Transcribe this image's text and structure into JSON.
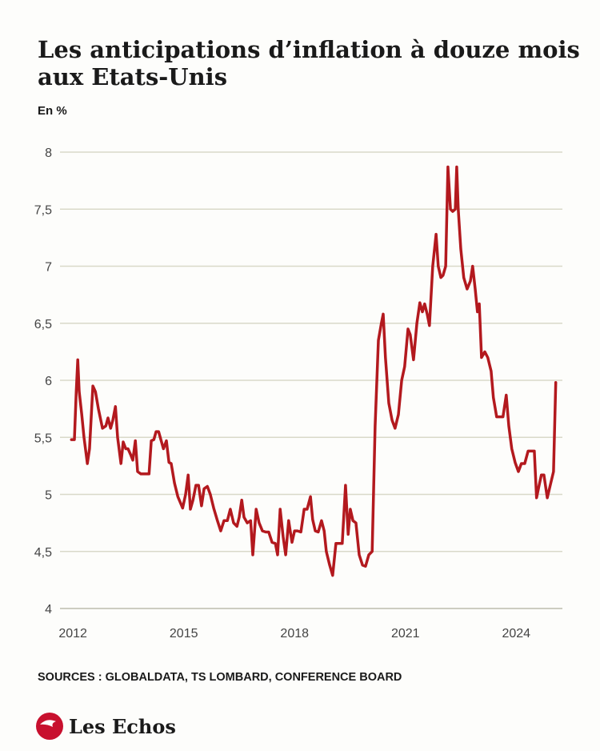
{
  "chart_data": {
    "type": "line",
    "title": "Les anticipations d’inflation à douze mois aux Etats-Unis",
    "title_lines": [
      "Les anticipations d’inflation à douze mois",
      "aux Etats-Unis"
    ],
    "subtitle": "En %",
    "source": "SOURCES : GLOBALDATA, TS LOMBARD, CONFERENCE BOARD",
    "brand": "Les Echos",
    "x": [
      2011.96,
      2012.04,
      2012.09,
      2012.13,
      2012.17,
      2012.24,
      2012.3,
      2012.39,
      2012.45,
      2012.54,
      2012.61,
      2012.69,
      2012.8,
      2012.89,
      2012.95,
      2013.02,
      2013.08,
      2013.15,
      2013.21,
      2013.3,
      2013.36,
      2013.43,
      2013.49,
      2013.56,
      2013.62,
      2013.69,
      2013.75,
      2013.84,
      2013.93,
      2014.06,
      2014.12,
      2014.19,
      2014.25,
      2014.32,
      2014.38,
      2014.45,
      2014.53,
      2014.6,
      2014.66,
      2014.75,
      2014.84,
      2014.97,
      2015.05,
      2015.12,
      2015.18,
      2015.25,
      2015.33,
      2015.4,
      2015.48,
      2015.55,
      2015.64,
      2015.72,
      2015.81,
      2015.9,
      2016.0,
      2016.09,
      2016.18,
      2016.26,
      2016.35,
      2016.44,
      2016.5,
      2016.57,
      2016.63,
      2016.72,
      2016.81,
      2016.87,
      2016.96,
      2017.04,
      2017.13,
      2017.22,
      2017.3,
      2017.39,
      2017.48,
      2017.54,
      2017.61,
      2017.69,
      2017.76,
      2017.84,
      2017.93,
      2018.0,
      2018.08,
      2018.17,
      2018.26,
      2018.34,
      2018.43,
      2018.49,
      2018.56,
      2018.64,
      2018.73,
      2018.8,
      2018.86,
      2018.95,
      2019.03,
      2019.12,
      2019.21,
      2019.29,
      2019.38,
      2019.45,
      2019.51,
      2019.58,
      2019.66,
      2019.75,
      2019.84,
      2019.92,
      2020.01,
      2020.1,
      2020.18,
      2020.27,
      2020.35,
      2020.4,
      2020.46,
      2020.55,
      2020.64,
      2020.72,
      2020.81,
      2020.9,
      2020.98,
      2021.07,
      2021.13,
      2021.22,
      2021.31,
      2021.39,
      2021.46,
      2021.52,
      2021.59,
      2021.65,
      2021.74,
      2021.83,
      2021.89,
      2021.96,
      2022.02,
      2022.09,
      2022.15,
      2022.22,
      2022.28,
      2022.35,
      2022.39,
      2022.43,
      2022.5,
      2022.58,
      2022.67,
      2022.76,
      2022.82,
      2022.89,
      2022.95,
      2023.0,
      2023.06,
      2023.15,
      2023.23,
      2023.32,
      2023.38,
      2023.47,
      2023.56,
      2023.64,
      2023.73,
      2023.8,
      2023.88,
      2023.97,
      2024.06,
      2024.14,
      2024.23,
      2024.32,
      2024.4,
      2024.49,
      2024.55,
      2024.62,
      2024.68,
      2024.75,
      2024.84,
      2024.92,
      2025.01,
      2025.07
    ],
    "series": [
      {
        "name": "Anticipations d’inflation à douze mois",
        "color": "#b3191e",
        "values": [
          5.48,
          5.48,
          5.9,
          6.18,
          5.9,
          5.7,
          5.5,
          5.27,
          5.4,
          5.95,
          5.9,
          5.75,
          5.58,
          5.6,
          5.67,
          5.58,
          5.65,
          5.77,
          5.5,
          5.27,
          5.46,
          5.4,
          5.4,
          5.35,
          5.3,
          5.47,
          5.2,
          5.18,
          5.18,
          5.18,
          5.47,
          5.48,
          5.55,
          5.55,
          5.48,
          5.4,
          5.47,
          5.28,
          5.27,
          5.1,
          4.98,
          4.88,
          5.0,
          5.17,
          4.87,
          4.95,
          5.08,
          5.08,
          4.9,
          5.05,
          5.07,
          5.0,
          4.88,
          4.78,
          4.68,
          4.77,
          4.77,
          4.87,
          4.75,
          4.72,
          4.8,
          4.95,
          4.8,
          4.75,
          4.77,
          4.47,
          4.87,
          4.75,
          4.68,
          4.67,
          4.67,
          4.58,
          4.57,
          4.47,
          4.87,
          4.63,
          4.47,
          4.77,
          4.58,
          4.68,
          4.68,
          4.67,
          4.87,
          4.87,
          4.98,
          4.78,
          4.68,
          4.67,
          4.77,
          4.68,
          4.5,
          4.38,
          4.29,
          4.57,
          4.57,
          4.57,
          5.08,
          4.65,
          4.87,
          4.77,
          4.75,
          4.47,
          4.38,
          4.37,
          4.47,
          4.5,
          5.6,
          6.35,
          6.5,
          6.58,
          6.2,
          5.8,
          5.65,
          5.58,
          5.7,
          6.0,
          6.12,
          6.45,
          6.4,
          6.18,
          6.5,
          6.68,
          6.6,
          6.67,
          6.58,
          6.48,
          7.0,
          7.28,
          7.0,
          6.9,
          6.92,
          7.0,
          7.87,
          7.5,
          7.48,
          7.5,
          7.87,
          7.5,
          7.15,
          6.9,
          6.8,
          6.87,
          7.0,
          6.8,
          6.6,
          6.67,
          6.2,
          6.25,
          6.2,
          6.08,
          5.85,
          5.68,
          5.68,
          5.68,
          5.87,
          5.6,
          5.4,
          5.28,
          5.2,
          5.27,
          5.27,
          5.38,
          5.38,
          5.38,
          4.97,
          5.08,
          5.17,
          5.17,
          4.97,
          5.08,
          5.2,
          5.98
        ]
      }
    ],
    "xlim": [
      2011.65,
      2025.25
    ],
    "xticks": [
      2012,
      2015,
      2018,
      2021,
      2024
    ],
    "ylim": [
      4,
      8
    ],
    "yticks": [
      4,
      {
        "value": 4.5,
        "label": "4,5"
      },
      5,
      {
        "value": 5.5,
        "label": "5,5"
      },
      6,
      {
        "value": 6.5,
        "label": "6,5"
      },
      7,
      {
        "value": 7.5,
        "label": "7,5"
      },
      8
    ],
    "grid": true
  }
}
